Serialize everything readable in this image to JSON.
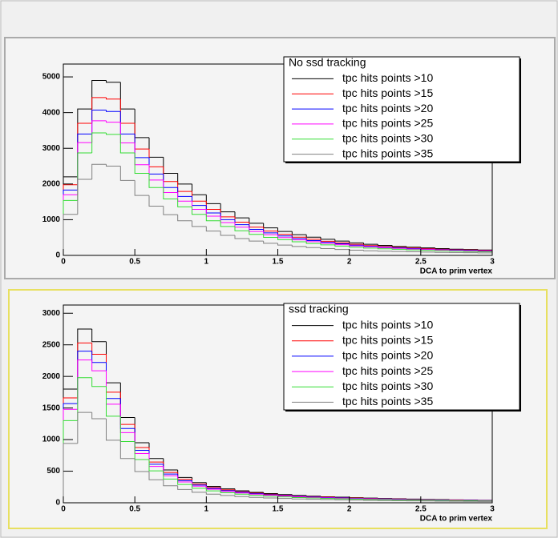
{
  "chart_data": [
    {
      "type": "histogram",
      "legend_title": "No ssd tracking",
      "x_label": "DCA to prim vertex",
      "bins": [
        0,
        0.1,
        0.2,
        0.3,
        0.4,
        0.5,
        0.6,
        0.7,
        0.8,
        0.9,
        1,
        1.1,
        1.2,
        1.3,
        1.4,
        1.5,
        1.6,
        1.7,
        1.8,
        1.9,
        2,
        2.1,
        2.2,
        2.3,
        2.4,
        2.5,
        2.6,
        2.7,
        2.8,
        2.9,
        3
      ],
      "xlim": [
        0,
        3
      ],
      "ylim": [
        0,
        5360
      ],
      "xticks": [
        0,
        0.5,
        1,
        1.5,
        2,
        2.5,
        3
      ],
      "yticks": [
        0,
        1000,
        2000,
        3000,
        4000,
        5000
      ],
      "series": [
        {
          "name": "tpc hits points >10",
          "color": "#000000",
          "values": [
            2200,
            4100,
            4900,
            4850,
            4100,
            3300,
            2750,
            2300,
            2000,
            1700,
            1450,
            1220,
            1050,
            900,
            770,
            670,
            580,
            510,
            450,
            400,
            350,
            310,
            280,
            250,
            230,
            210,
            190,
            175,
            165,
            150
          ]
        },
        {
          "name": "tpc hits points >15",
          "color": "#ff0000",
          "values": [
            1980,
            3700,
            4420,
            4380,
            3700,
            2980,
            2480,
            2070,
            1790,
            1520,
            1290,
            1080,
            930,
            790,
            680,
            590,
            510,
            450,
            395,
            350,
            310,
            275,
            250,
            225,
            205,
            190,
            170,
            160,
            150,
            140
          ]
        },
        {
          "name": "tpc hits points >20",
          "color": "#0000ff",
          "values": [
            1830,
            3400,
            4070,
            4030,
            3400,
            2740,
            2280,
            1900,
            1650,
            1400,
            1190,
            1000,
            860,
            730,
            630,
            545,
            470,
            415,
            365,
            325,
            285,
            255,
            230,
            210,
            190,
            175,
            160,
            150,
            140,
            130
          ]
        },
        {
          "name": "tpc hits points >25",
          "color": "#ff00ff",
          "values": [
            1700,
            3160,
            3770,
            3730,
            3150,
            2540,
            2110,
            1760,
            1520,
            1290,
            1100,
            920,
            790,
            670,
            580,
            500,
            435,
            385,
            340,
            300,
            265,
            240,
            215,
            195,
            180,
            165,
            150,
            140,
            130,
            120
          ]
        },
        {
          "name": "tpc hits points >30",
          "color": "#33dd33",
          "values": [
            1540,
            2870,
            3430,
            3390,
            2870,
            2300,
            1900,
            1580,
            1360,
            1150,
            970,
            810,
            690,
            590,
            505,
            440,
            380,
            335,
            295,
            260,
            230,
            205,
            185,
            170,
            155,
            140,
            130,
            120,
            110,
            100
          ]
        },
        {
          "name": "tpc hits points >35",
          "color": "#808080",
          "values": [
            1150,
            2130,
            2550,
            2500,
            2100,
            1680,
            1380,
            1140,
            970,
            810,
            680,
            560,
            470,
            400,
            340,
            290,
            250,
            220,
            190,
            165,
            145,
            130,
            118,
            108,
            100,
            92,
            85,
            80,
            75,
            70
          ]
        }
      ]
    },
    {
      "type": "histogram",
      "legend_title": "ssd tracking",
      "x_label": "DCA to prim vertex",
      "bins": [
        0,
        0.1,
        0.2,
        0.3,
        0.4,
        0.5,
        0.6,
        0.7,
        0.8,
        0.9,
        1,
        1.1,
        1.2,
        1.3,
        1.4,
        1.5,
        1.6,
        1.7,
        1.8,
        1.9,
        2,
        2.1,
        2.2,
        2.3,
        2.4,
        2.5,
        2.6,
        2.7,
        2.8,
        2.9,
        3
      ],
      "xlim": [
        0,
        3
      ],
      "ylim": [
        0,
        3130
      ],
      "xticks": [
        0,
        0.5,
        1,
        1.5,
        2,
        2.5,
        3
      ],
      "yticks": [
        0,
        500,
        1000,
        1500,
        2000,
        2500,
        3000
      ],
      "series": [
        {
          "name": "tpc hits points >10",
          "color": "#000000",
          "values": [
            1800,
            2750,
            2550,
            1900,
            1350,
            950,
            700,
            520,
            400,
            320,
            260,
            220,
            190,
            165,
            145,
            130,
            115,
            105,
            95,
            88,
            80,
            74,
            68,
            63,
            58,
            54,
            50,
            46,
            43,
            40
          ]
        },
        {
          "name": "tpc hits points >15",
          "color": "#ff0000",
          "values": [
            1660,
            2530,
            2350,
            1750,
            1240,
            875,
            645,
            480,
            370,
            295,
            240,
            205,
            175,
            152,
            134,
            120,
            106,
            97,
            88,
            81,
            74,
            68,
            63,
            58,
            54,
            50,
            46,
            42,
            40,
            37
          ]
        },
        {
          "name": "tpc hits points >20",
          "color": "#0000ff",
          "values": [
            1570,
            2400,
            2220,
            1650,
            1175,
            830,
            610,
            455,
            350,
            280,
            228,
            192,
            166,
            144,
            127,
            114,
            101,
            92,
            83,
            77,
            70,
            65,
            60,
            55,
            51,
            47,
            44,
            40,
            38,
            35
          ]
        },
        {
          "name": "tpc hits points >25",
          "color": "#ff00ff",
          "values": [
            1480,
            2260,
            2090,
            1560,
            1110,
            780,
            575,
            428,
            330,
            263,
            214,
            181,
            156,
            136,
            120,
            107,
            95,
            86,
            78,
            72,
            66,
            61,
            56,
            52,
            48,
            44,
            41,
            38,
            35,
            33
          ]
        },
        {
          "name": "tpc hits points >30",
          "color": "#33dd33",
          "values": [
            1300,
            1980,
            1840,
            1370,
            970,
            685,
            505,
            375,
            290,
            230,
            188,
            158,
            137,
            119,
            105,
            94,
            83,
            76,
            68,
            63,
            58,
            53,
            49,
            45,
            42,
            39,
            36,
            33,
            31,
            29
          ]
        },
        {
          "name": "tpc hits points >35",
          "color": "#808080",
          "values": [
            940,
            1430,
            1330,
            990,
            700,
            495,
            365,
            270,
            210,
            167,
            136,
            115,
            99,
            86,
            76,
            68,
            60,
            55,
            50,
            46,
            42,
            38,
            35,
            33,
            30,
            28,
            26,
            24,
            22,
            21
          ]
        }
      ]
    }
  ]
}
